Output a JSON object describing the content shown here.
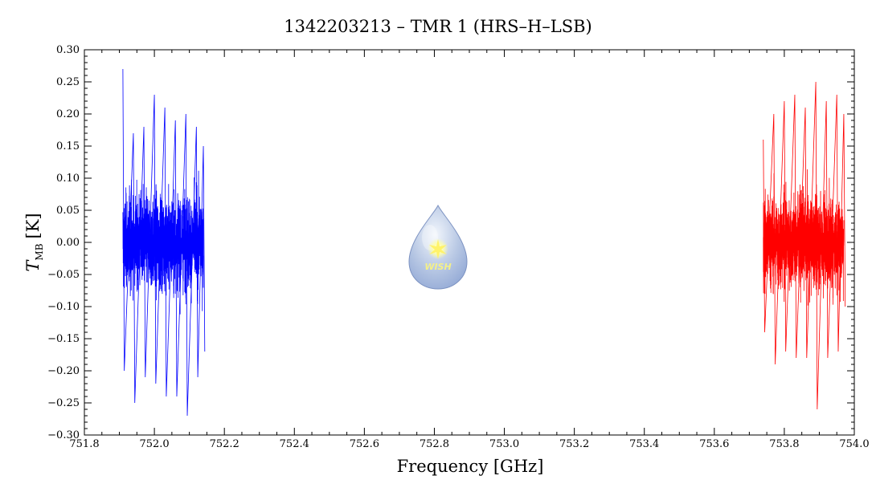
{
  "chart_data": {
    "type": "line",
    "title": "1342203213 – TMR 1 (HRS–H–LSB)",
    "xlabel": "Frequency [GHz]",
    "ylabel_main": "T",
    "ylabel_sub": "MB",
    "ylabel_unit": "[K]",
    "xlim": [
      751.8,
      754.0
    ],
    "ylim": [
      -0.3,
      0.3
    ],
    "x_ticks": [
      "751.8",
      "752.0",
      "752.2",
      "752.4",
      "752.6",
      "752.8",
      "753.0",
      "753.2",
      "753.4",
      "753.6",
      "753.8",
      "754.0"
    ],
    "y_ticks": [
      "−0.30",
      "−0.25",
      "−0.20",
      "−0.15",
      "−0.10",
      "−0.05",
      "0.00",
      "0.05",
      "0.10",
      "0.15",
      "0.20",
      "0.25",
      "0.30"
    ],
    "grid": false,
    "series": [
      {
        "color": "#0000ff",
        "x_range": [
          751.91,
          752.14
        ],
        "envelope": {
          "x": [
            751.91,
            751.94,
            751.97,
            752.0,
            752.03,
            752.06,
            752.09,
            752.12,
            752.14
          ],
          "max": [
            0.27,
            0.17,
            0.18,
            0.23,
            0.21,
            0.19,
            0.2,
            0.18,
            0.15
          ],
          "min": [
            -0.2,
            -0.25,
            -0.21,
            -0.22,
            -0.24,
            -0.24,
            -0.27,
            -0.21,
            -0.17
          ]
        },
        "rms": 0.05
      },
      {
        "color": "#ff0000",
        "x_range": [
          753.74,
          753.97
        ],
        "envelope": {
          "x": [
            753.74,
            753.77,
            753.8,
            753.83,
            753.86,
            753.89,
            753.92,
            753.95,
            753.97
          ],
          "max": [
            0.16,
            0.2,
            0.22,
            0.23,
            0.21,
            0.25,
            0.22,
            0.23,
            0.2
          ],
          "min": [
            -0.14,
            -0.19,
            -0.17,
            -0.18,
            -0.18,
            -0.26,
            -0.18,
            -0.17,
            -0.1
          ]
        },
        "rms": 0.05
      }
    ]
  },
  "logo": {
    "text": "WISH"
  }
}
